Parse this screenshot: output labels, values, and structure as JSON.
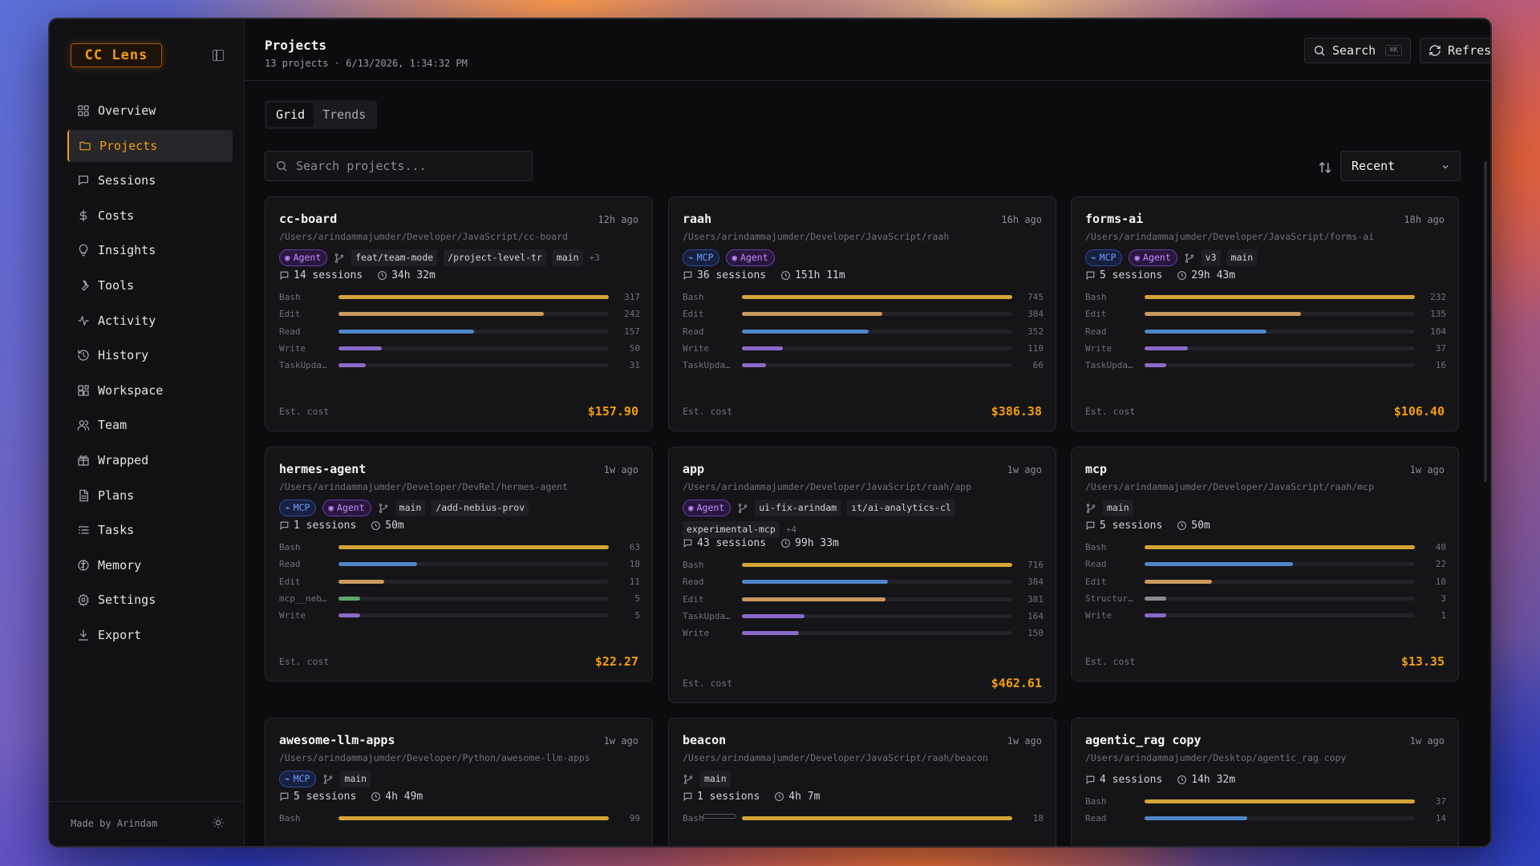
{
  "app": {
    "logo": "CC Lens"
  },
  "sidebar": {
    "items": [
      {
        "label": "Overview",
        "icon": "grid-icon",
        "key": "overview"
      },
      {
        "label": "Projects",
        "icon": "folder-icon",
        "key": "projects",
        "active": true
      },
      {
        "label": "Sessions",
        "icon": "message-icon",
        "key": "sessions"
      },
      {
        "label": "Costs",
        "icon": "dollar-icon",
        "key": "costs"
      },
      {
        "label": "Insights",
        "icon": "lightbulb-icon",
        "key": "insights"
      },
      {
        "label": "Tools",
        "icon": "wrench-icon",
        "key": "tools"
      },
      {
        "label": "Activity",
        "icon": "activity-icon",
        "key": "activity"
      },
      {
        "label": "History",
        "icon": "history-icon",
        "key": "history"
      },
      {
        "label": "Workspace",
        "icon": "workspace-icon",
        "key": "workspace"
      },
      {
        "label": "Team",
        "icon": "users-icon",
        "key": "team"
      },
      {
        "label": "Wrapped",
        "icon": "gift-icon",
        "key": "wrapped"
      },
      {
        "label": "Plans",
        "icon": "file-icon",
        "key": "plans"
      },
      {
        "label": "Tasks",
        "icon": "list-icon",
        "key": "tasks"
      },
      {
        "label": "Memory",
        "icon": "brain-icon",
        "key": "memory"
      },
      {
        "label": "Settings",
        "icon": "gear-icon",
        "key": "settings"
      },
      {
        "label": "Export",
        "icon": "download-icon",
        "key": "export"
      }
    ],
    "footer": "Made by Arindam"
  },
  "header": {
    "title": "Projects",
    "subtitle": "13 projects · 6/13/2026, 1:34:32 PM",
    "search_label": "Search",
    "search_kbd": "⌘K",
    "refresh_label": "Refresh"
  },
  "tabs": [
    {
      "label": "Grid",
      "active": true
    },
    {
      "label": "Trends"
    }
  ],
  "filter": {
    "search_placeholder": "Search projects...",
    "sort_value": "Recent"
  },
  "colors": {
    "accent": "#f59e0b",
    "mcp": "#6f9bff",
    "agent": "#c68cff"
  },
  "cards": [
    {
      "name": "cc-board",
      "ago": "12h ago",
      "path": "/Users/arindammajumder/Developer/JavaScript/cc-board",
      "tags": [
        "Agent"
      ],
      "branches": [
        "feat/team-mode",
        "/project-level-tr",
        "main"
      ],
      "more": "+3",
      "sessions": "14 sessions",
      "time": "34h 32m",
      "tools": [
        {
          "name": "Bash",
          "value": 317,
          "pct": 1.0,
          "color": "#d4a437"
        },
        {
          "name": "Edit",
          "value": 242,
          "pct": 0.76,
          "color": "#c99a5e"
        },
        {
          "name": "Read",
          "value": 157,
          "pct": 0.5,
          "color": "#4e86c6"
        },
        {
          "name": "Write",
          "value": 50,
          "pct": 0.16,
          "color": "#8a6ac8"
        },
        {
          "name": "TaskUpda…",
          "value": 31,
          "pct": 0.1,
          "color": "#8a6ac8"
        }
      ],
      "cost_label": "Est. cost",
      "cost": "$157.90"
    },
    {
      "name": "raah",
      "ago": "16h ago",
      "path": "/Users/arindammajumder/Developer/JavaScript/raah",
      "tags": [
        "MCP",
        "Agent"
      ],
      "branches": [],
      "more": "",
      "sessions": "36 sessions",
      "time": "151h 11m",
      "tools": [
        {
          "name": "Bash",
          "value": 745,
          "pct": 1.0,
          "color": "#d4a437"
        },
        {
          "name": "Edit",
          "value": 384,
          "pct": 0.52,
          "color": "#c99a5e"
        },
        {
          "name": "Read",
          "value": 352,
          "pct": 0.47,
          "color": "#4e86c6"
        },
        {
          "name": "Write",
          "value": 110,
          "pct": 0.15,
          "color": "#8a6ac8"
        },
        {
          "name": "TaskUpda…",
          "value": 66,
          "pct": 0.09,
          "color": "#8a6ac8"
        }
      ],
      "cost_label": "Est. cost",
      "cost": "$386.38"
    },
    {
      "name": "forms-ai",
      "ago": "18h ago",
      "path": "/Users/arindammajumder/Developer/JavaScript/forms-ai",
      "tags": [
        "MCP",
        "Agent"
      ],
      "branches": [
        "v3",
        "main"
      ],
      "more": "",
      "sessions": "5 sessions",
      "time": "29h 43m",
      "tools": [
        {
          "name": "Bash",
          "value": 232,
          "pct": 1.0,
          "color": "#d4a437"
        },
        {
          "name": "Edit",
          "value": 135,
          "pct": 0.58,
          "color": "#c99a5e"
        },
        {
          "name": "Read",
          "value": 104,
          "pct": 0.45,
          "color": "#4e86c6"
        },
        {
          "name": "Write",
          "value": 37,
          "pct": 0.16,
          "color": "#8a6ac8"
        },
        {
          "name": "TaskUpda…",
          "value": 16,
          "pct": 0.08,
          "color": "#8a6ac8"
        }
      ],
      "cost_label": "Est. cost",
      "cost": "$106.40"
    },
    {
      "name": "hermes-agent",
      "ago": "1w ago",
      "path": "/Users/arindammajumder/Developer/DevRel/hermes-agent",
      "tags": [
        "MCP",
        "Agent"
      ],
      "branches": [
        "main",
        "/add-nebius-prov"
      ],
      "more": "",
      "sessions": "1 sessions",
      "time": "50m",
      "tools": [
        {
          "name": "Bash",
          "value": 63,
          "pct": 1.0,
          "color": "#d4a437"
        },
        {
          "name": "Read",
          "value": 18,
          "pct": 0.29,
          "color": "#4e86c6"
        },
        {
          "name": "Edit",
          "value": 11,
          "pct": 0.17,
          "color": "#c99a5e"
        },
        {
          "name": "mcp__neb…",
          "value": 5,
          "pct": 0.08,
          "color": "#5aa86a"
        },
        {
          "name": "Write",
          "value": 5,
          "pct": 0.08,
          "color": "#8a6ac8"
        }
      ],
      "cost_label": "Est. cost",
      "cost": "$22.27"
    },
    {
      "name": "app",
      "ago": "1w ago",
      "path": "/Users/arindammajumder/Developer/JavaScript/raah/app",
      "tags": [
        "Agent"
      ],
      "branches": [
        "ui-fix-arindam",
        "ıt/ai-analytics-cl",
        "experimental-mcp"
      ],
      "more": "+4",
      "sessions": "43 sessions",
      "time": "99h 33m",
      "tools": [
        {
          "name": "Bash",
          "value": 716,
          "pct": 1.0,
          "color": "#d4a437"
        },
        {
          "name": "Read",
          "value": 384,
          "pct": 0.54,
          "color": "#4e86c6"
        },
        {
          "name": "Edit",
          "value": 381,
          "pct": 0.53,
          "color": "#c99a5e"
        },
        {
          "name": "TaskUpda…",
          "value": 164,
          "pct": 0.23,
          "color": "#8a6ac8"
        },
        {
          "name": "Write",
          "value": 150,
          "pct": 0.21,
          "color": "#8a6ac8"
        }
      ],
      "cost_label": "Est. cost",
      "cost": "$462.61"
    },
    {
      "name": "mcp",
      "ago": "1w ago",
      "path": "/Users/arindammajumder/Developer/JavaScript/raah/mcp",
      "tags": [],
      "branches": [
        "main"
      ],
      "more": "",
      "sessions": "5 sessions",
      "time": "50m",
      "tools": [
        {
          "name": "Bash",
          "value": 40,
          "pct": 1.0,
          "color": "#d4a437"
        },
        {
          "name": "Read",
          "value": 22,
          "pct": 0.55,
          "color": "#4e86c6"
        },
        {
          "name": "Edit",
          "value": 10,
          "pct": 0.25,
          "color": "#c99a5e"
        },
        {
          "name": "Structur…",
          "value": 3,
          "pct": 0.08,
          "color": "#8a8a92"
        },
        {
          "name": "Write",
          "value": 1,
          "pct": 0.08,
          "color": "#8a6ac8"
        }
      ],
      "cost_label": "Est. cost",
      "cost": "$13.35"
    },
    {
      "name": "awesome-llm-apps",
      "ago": "1w ago",
      "path": "/Users/arindammajumder/Developer/Python/awesome-llm-apps",
      "tags": [
        "MCP"
      ],
      "branches": [
        "main"
      ],
      "more": "",
      "sessions": "5 sessions",
      "time": "4h 49m",
      "tools": [
        {
          "name": "Bash",
          "value": 99,
          "pct": 1.0,
          "color": "#d4a437"
        }
      ],
      "cost_label": "",
      "cost": ""
    },
    {
      "name": "beacon",
      "ago": "1w ago",
      "path": "/Users/arindammajumder/Developer/JavaScript/raah/beacon",
      "tags": [],
      "branches": [
        "main"
      ],
      "more": "",
      "sessions": "1 sessions",
      "time": "4h 7m",
      "tools": [
        {
          "name": "Bash",
          "value": 18,
          "pct": 1.0,
          "color": "#d4a437"
        }
      ],
      "cost_label": "",
      "cost": ""
    },
    {
      "name": "agentic_rag copy",
      "ago": "1w ago",
      "path": "/Users/arindammajumder/Desktop/agentic_rag copy",
      "tags": [],
      "branches": [],
      "more": "",
      "sessions": "4 sessions",
      "time": "14h 32m",
      "tools": [
        {
          "name": "Bash",
          "value": 37,
          "pct": 1.0,
          "color": "#d4a437"
        },
        {
          "name": "Read",
          "value": 14,
          "pct": 0.38,
          "color": "#4e86c6"
        }
      ],
      "cost_label": "",
      "cost": ""
    }
  ]
}
